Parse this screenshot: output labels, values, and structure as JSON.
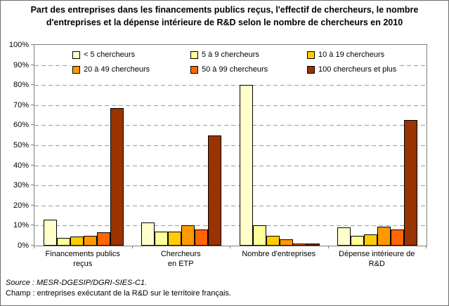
{
  "chart_data": {
    "type": "bar",
    "title": "Part des entreprises dans les financements publics reçus, l'effectif de chercheurs, le nombre d'entreprises et la dépense intérieure de R&D selon le nombre de chercheurs en 2010",
    "categories": [
      "Financements publics reçus",
      "Chercheurs en ETP",
      "Nombre d'entreprises",
      "Dépense intérieure de R&D"
    ],
    "category_label_lines": [
      [
        "Financements publics",
        "reçus"
      ],
      [
        "Chercheurs",
        "en ETP"
      ],
      [
        "Nombre d'entreprises"
      ],
      [
        "Dépense intérieure de",
        "R&D"
      ]
    ],
    "series": [
      {
        "name": "< 5 chercheurs",
        "color": "#FFFFCC",
        "values": [
          13,
          11.5,
          80,
          9
        ]
      },
      {
        "name": "5 à 9 chercheurs",
        "color": "#FFFF99",
        "values": [
          4,
          7,
          10,
          5
        ]
      },
      {
        "name": "10 à 19 chercheurs",
        "color": "#FFCC00",
        "values": [
          4.5,
          7,
          5,
          5.5
        ]
      },
      {
        "name": "20 à 49 chercheurs",
        "color": "#FF9900",
        "values": [
          5,
          10,
          3,
          9.5
        ]
      },
      {
        "name": "50 à 99 chercheurs",
        "color": "#FF6600",
        "values": [
          6.5,
          8,
          1,
          8
        ]
      },
      {
        "name": "100 chercheurs et plus",
        "color": "#993300",
        "values": [
          68.5,
          55,
          1,
          62.5
        ]
      }
    ],
    "ylim": [
      0,
      100
    ],
    "ytick_step": 10,
    "ytick_suffix": "%",
    "grid": true,
    "legend_position": "top-inside",
    "axis_color": "#808080",
    "bar_border_color": "#000000"
  },
  "footer": {
    "source": "Source : MESR-DGESIP/DGRI-SIES-C1.",
    "champ": "Champ : entreprises exécutant de la R&D sur le territoire français."
  }
}
